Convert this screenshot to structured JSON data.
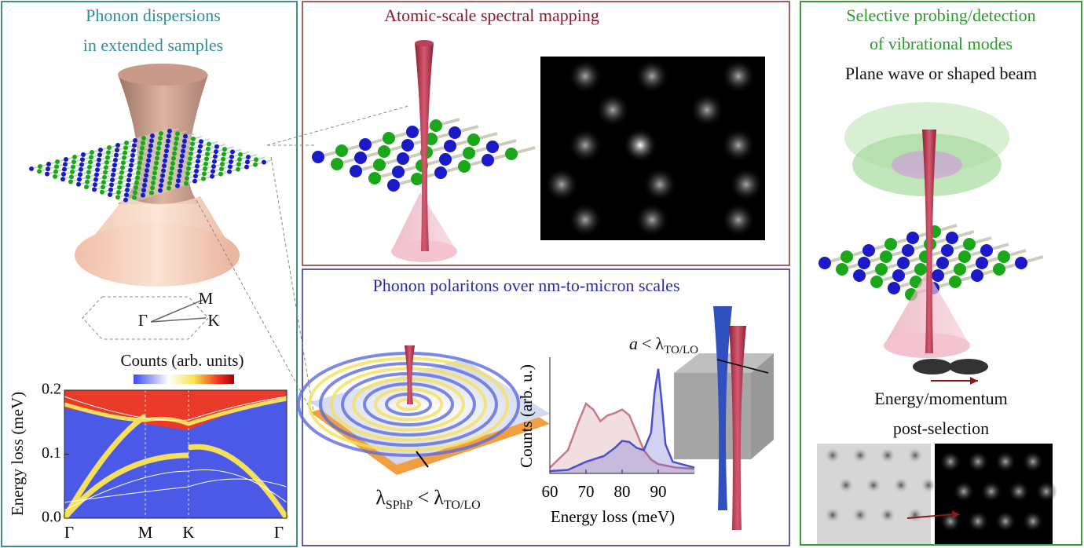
{
  "panels": {
    "left": {
      "title_line1": "Phonon dispersions",
      "title_line2": "in extended samples",
      "bz_labels": {
        "m": "M",
        "gamma": "Γ",
        "k": "K"
      },
      "colorbar_label": "Counts (arb. units)",
      "plot": {
        "ylabel": "Energy loss (meV)",
        "ylim": [
          0,
          0.2
        ],
        "yticks": [
          {
            "value": 0,
            "label": "0.0"
          },
          0.1,
          0.2
        ],
        "xtick_labels": [
          "Γ",
          "M",
          "K",
          "Γ"
        ]
      }
    },
    "top_middle": {
      "title": "Atomic-scale spectral mapping"
    },
    "bottom_middle": {
      "title": "Phonon polaritons over nm-to-micron scales",
      "wavelength_relation": {
        "lambda": "λ",
        "lambda_sub": "SPhP",
        "relation": "<",
        "lambda2": "λ",
        "lambda2_sub": "TO/LO"
      },
      "size_relation": {
        "a": "a",
        "relation": "<",
        "lambda": "λ",
        "lambda_sub": "TO/LO"
      },
      "chart_data": {
        "type": "line",
        "xlabel": "Energy loss (meV)",
        "ylabel": "Counts (arb. u.)",
        "xlim": [
          60,
          100
        ],
        "xticks": [
          60,
          70,
          80,
          90
        ],
        "ylim": [
          0,
          1
        ],
        "series": [
          {
            "color": "#c77a88",
            "x": [
              60,
              65,
              68,
              70,
              72,
              74,
              76,
              78,
              80,
              82,
              84,
              86,
              88,
              90,
              95,
              100
            ],
            "values": [
              0.05,
              0.2,
              0.45,
              0.6,
              0.55,
              0.45,
              0.5,
              0.52,
              0.55,
              0.5,
              0.35,
              0.2,
              0.12,
              0.08,
              0.05,
              0.04
            ]
          },
          {
            "color": "#4a4fd0",
            "x": [
              60,
              65,
              70,
              72,
              75,
              78,
              80,
              82,
              84,
              86,
              88,
              89,
              90,
              91,
              92,
              94,
              100
            ],
            "values": [
              0.02,
              0.03,
              0.1,
              0.12,
              0.15,
              0.22,
              0.28,
              0.27,
              0.22,
              0.2,
              0.35,
              0.7,
              0.9,
              0.6,
              0.25,
              0.1,
              0.05
            ]
          }
        ]
      }
    },
    "right": {
      "title_line1": "Selective probing/detection",
      "title_line2": "of vibrational modes",
      "subtitle": "Plane wave or shaped beam",
      "caption_line1": "Energy/momentum",
      "caption_line2": "post-selection"
    }
  }
}
